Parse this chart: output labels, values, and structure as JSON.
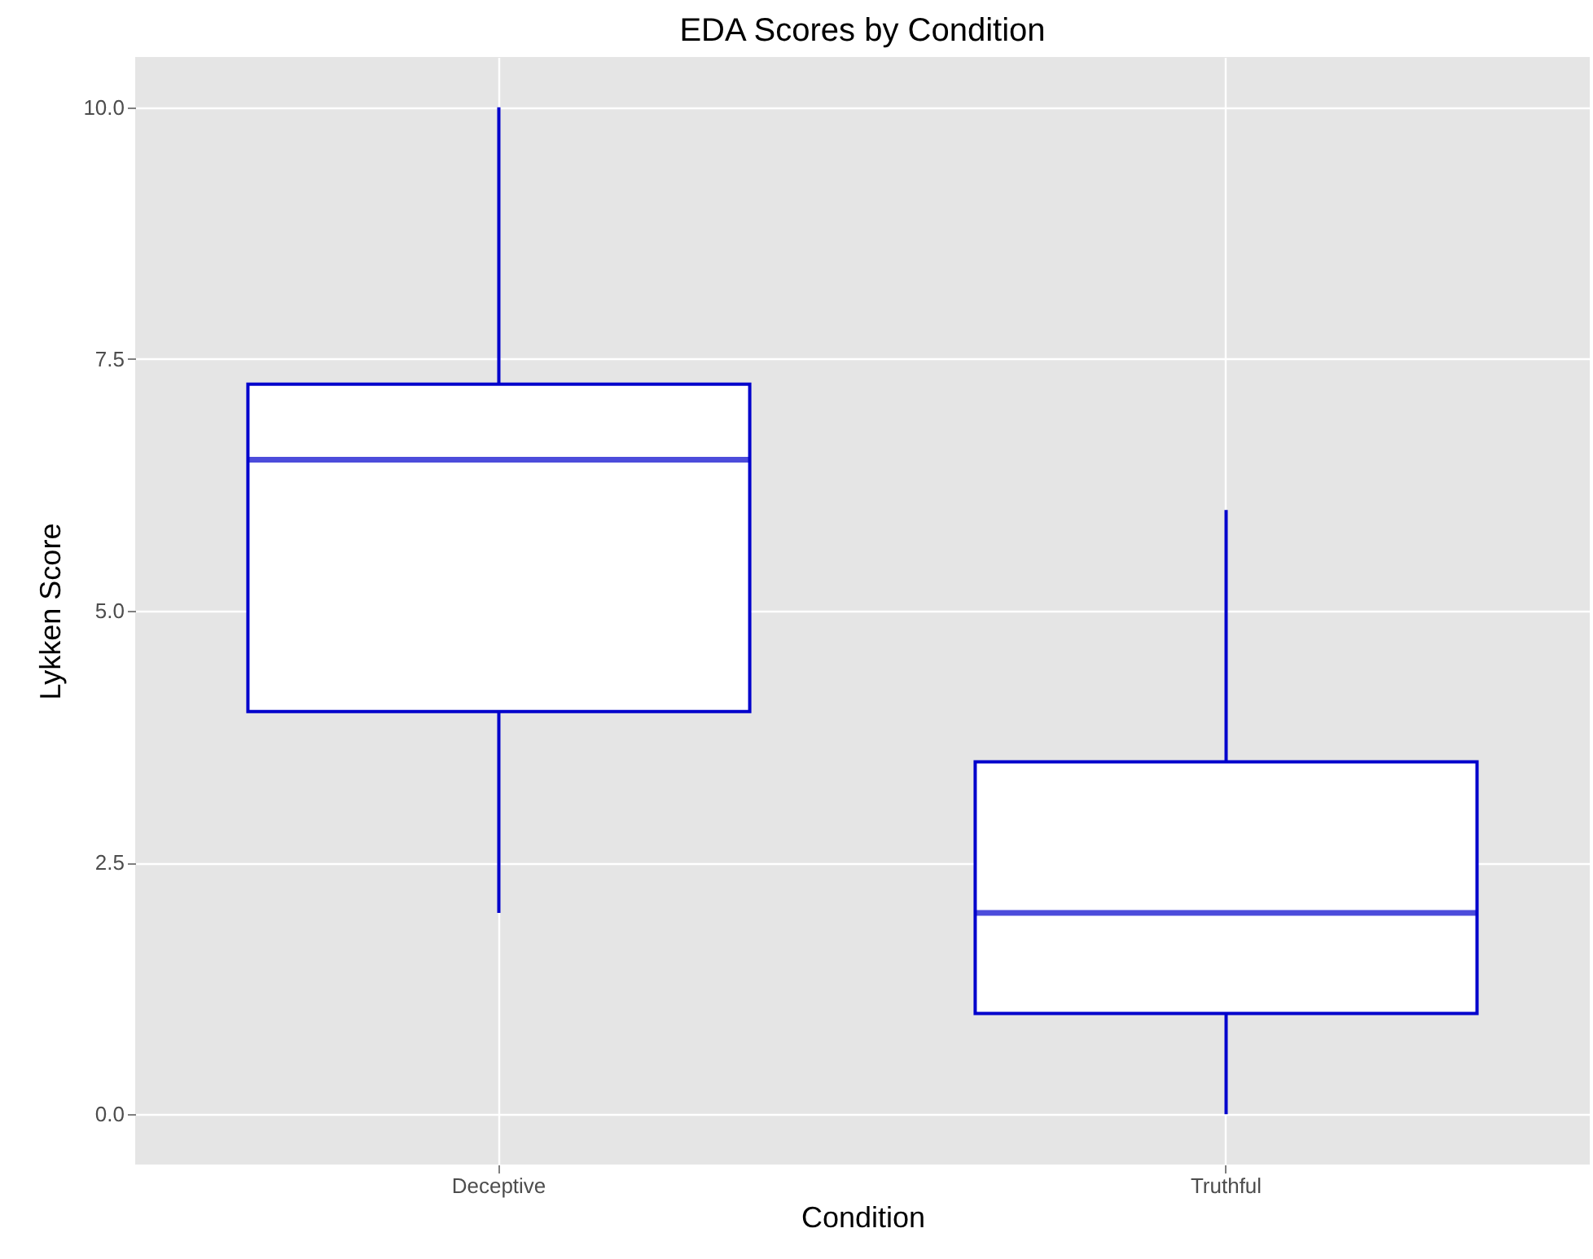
{
  "chart_data": {
    "type": "box",
    "title": "EDA Scores by Condition",
    "xlabel": "Condition",
    "ylabel": "Lykken Score",
    "categories": [
      "Deceptive",
      "Truthful"
    ],
    "series": [
      {
        "color": "#0000cc",
        "boxes": [
          {
            "low": 2,
            "q1": 4,
            "median": 6.5,
            "q3": 7.25,
            "high": 10
          },
          {
            "low": 0,
            "q1": 1,
            "median": 2,
            "q3": 3.5,
            "high": 6
          }
        ]
      }
    ],
    "ylim": [
      -0.5,
      10.5
    ],
    "yticks": [
      {
        "value": 0,
        "label": "0.0"
      },
      {
        "value": 2.5,
        "label": "2.5"
      },
      {
        "value": 5,
        "label": "5.0"
      },
      {
        "value": 7.5,
        "label": "7.5"
      },
      {
        "value": 10,
        "label": "10.0"
      }
    ],
    "grid": true
  }
}
